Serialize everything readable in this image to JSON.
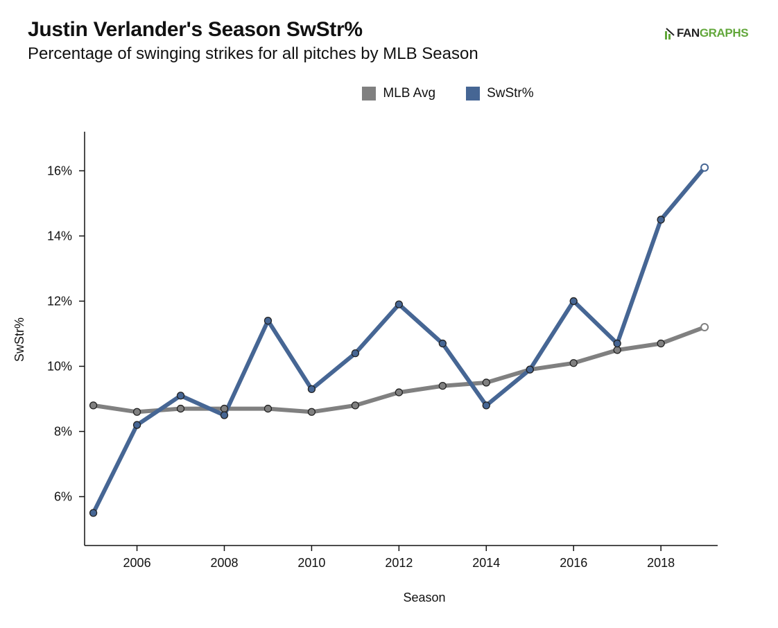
{
  "header": {
    "title": "Justin Verlander's Season SwStr%",
    "subtitle": "Percentage of swinging strikes for all pitches by MLB Season"
  },
  "logo": {
    "text_fan": "FAN",
    "text_graphs": "GRAPHS",
    "icon": "fangraphs-batter-icon"
  },
  "colors": {
    "mlb_avg": "#808080",
    "swstr": "#466694",
    "axis": "#111111"
  },
  "chart_data": {
    "type": "line",
    "title": "Justin Verlander's Season SwStr%",
    "subtitle": "Percentage of swinging strikes for all pitches by MLB Season",
    "xlabel": "Season",
    "ylabel": "SwStr%",
    "xlim": [
      2004.8,
      2019.3
    ],
    "ylim": [
      4.5,
      17.2
    ],
    "x_ticks": [
      2006,
      2008,
      2010,
      2012,
      2014,
      2016,
      2018
    ],
    "x_tick_labels": [
      "2006",
      "2008",
      "2010",
      "2012",
      "2014",
      "2016",
      "2018"
    ],
    "y_ticks": [
      6,
      8,
      10,
      12,
      14,
      16
    ],
    "y_tick_labels": [
      "6%",
      "8%",
      "10%",
      "12%",
      "14%",
      "16%"
    ],
    "grid": false,
    "legend_position": "top-center",
    "x": [
      2005,
      2006,
      2007,
      2008,
      2009,
      2010,
      2011,
      2012,
      2013,
      2014,
      2015,
      2016,
      2017,
      2018,
      2019
    ],
    "series": [
      {
        "name": "MLB Avg",
        "values": [
          8.8,
          8.6,
          8.7,
          8.7,
          8.7,
          8.6,
          8.8,
          9.2,
          9.4,
          9.5,
          9.9,
          10.1,
          10.5,
          10.7,
          11.2
        ]
      },
      {
        "name": "SwStr%",
        "values": [
          5.5,
          8.2,
          9.1,
          8.5,
          11.4,
          9.3,
          10.4,
          11.9,
          10.7,
          8.8,
          9.9,
          12.0,
          10.7,
          14.5,
          16.1
        ]
      }
    ]
  }
}
